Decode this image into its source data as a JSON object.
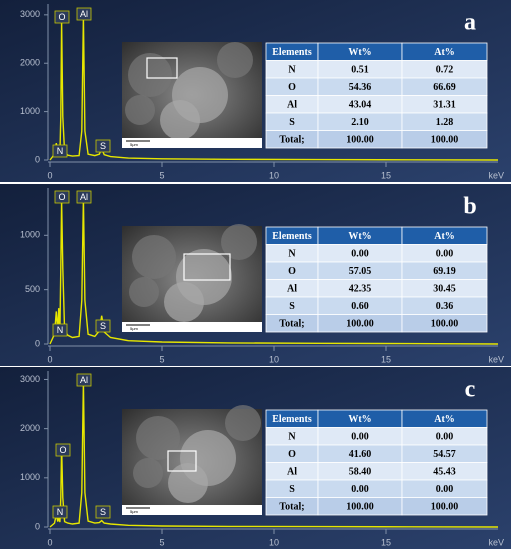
{
  "chart_data": [
    {
      "type": "line",
      "panel_label": "a",
      "x_unit": "keV",
      "color": "#e6e600",
      "x": [
        0,
        0.2,
        0.28,
        0.35,
        0.39,
        0.44,
        0.48,
        0.52,
        0.57,
        0.65,
        0.8,
        1.0,
        1.3,
        1.42,
        1.49,
        1.56,
        1.7,
        2.0,
        2.2,
        2.31,
        2.42,
        2.7,
        3.5,
        5,
        8,
        12,
        16,
        20
      ],
      "values": [
        0,
        120,
        350,
        150,
        280,
        120,
        900,
        2900,
        900,
        150,
        100,
        80,
        90,
        600,
        2950,
        600,
        120,
        90,
        120,
        230,
        110,
        70,
        40,
        25,
        15,
        8,
        5,
        0
      ],
      "xlim": [
        0,
        20
      ],
      "xticks": [
        0,
        5,
        10,
        15
      ],
      "ylim": [
        0,
        3100
      ],
      "yticks": [
        0,
        1000,
        2000,
        3000
      ],
      "annotations": [
        "O",
        "Al",
        "N",
        "S"
      ],
      "scale_bar": "5μm",
      "table": {
        "header": [
          "Elements",
          "Wt%",
          "At%"
        ],
        "rows": [
          [
            "N",
            "0.51",
            "0.72"
          ],
          [
            "O",
            "54.36",
            "66.69"
          ],
          [
            "Al",
            "43.04",
            "31.31"
          ],
          [
            "S",
            "2.10",
            "1.28"
          ],
          [
            "Total;",
            "100.00",
            "100.00"
          ]
        ]
      }
    },
    {
      "type": "line",
      "panel_label": "b",
      "x_unit": "keV",
      "color": "#e6e600",
      "x": [
        0,
        0.2,
        0.28,
        0.35,
        0.39,
        0.44,
        0.48,
        0.52,
        0.57,
        0.65,
        0.8,
        1.0,
        1.3,
        1.42,
        1.49,
        1.56,
        1.7,
        2.0,
        2.2,
        2.31,
        2.42,
        2.7,
        3.5,
        5,
        8,
        12,
        16,
        20
      ],
      "values": [
        0,
        90,
        300,
        120,
        330,
        110,
        700,
        1330,
        700,
        120,
        80,
        60,
        70,
        400,
        1340,
        400,
        90,
        70,
        120,
        260,
        110,
        60,
        30,
        18,
        10,
        6,
        4,
        0
      ],
      "xlim": [
        0,
        20
      ],
      "xticks": [
        0,
        5,
        10,
        15
      ],
      "ylim": [
        0,
        1380
      ],
      "yticks": [
        0,
        500,
        1000
      ],
      "annotations": [
        "O",
        "Al",
        "N",
        "S"
      ],
      "scale_bar": "5μm",
      "table": {
        "header": [
          "Elements",
          "Wt%",
          "At%"
        ],
        "rows": [
          [
            "N",
            "0.00",
            "0.00"
          ],
          [
            "O",
            "57.05",
            "69.19"
          ],
          [
            "Al",
            "42.35",
            "30.45"
          ],
          [
            "S",
            "0.60",
            "0.36"
          ],
          [
            "Total;",
            "100.00",
            "100.00"
          ]
        ]
      }
    },
    {
      "type": "line",
      "panel_label": "c",
      "x_unit": "keV",
      "color": "#e6e600",
      "x": [
        0,
        0.2,
        0.28,
        0.35,
        0.39,
        0.44,
        0.48,
        0.52,
        0.57,
        0.65,
        0.8,
        1.0,
        1.3,
        1.42,
        1.49,
        1.56,
        1.7,
        2.0,
        2.2,
        2.31,
        2.42,
        2.7,
        3.5,
        5,
        8,
        12,
        16,
        20
      ],
      "values": [
        0,
        80,
        250,
        110,
        200,
        100,
        600,
        1650,
        600,
        110,
        80,
        60,
        80,
        700,
        2950,
        700,
        120,
        80,
        90,
        130,
        80,
        60,
        35,
        20,
        12,
        8,
        5,
        0
      ],
      "xlim": [
        0,
        20
      ],
      "xticks": [
        0,
        5,
        10,
        15
      ],
      "ylim": [
        0,
        3050
      ],
      "yticks": [
        0,
        1000,
        2000,
        3000
      ],
      "annotations": [
        "Al",
        "O",
        "N",
        "S"
      ],
      "scale_bar": "5μm",
      "table": {
        "header": [
          "Elements",
          "Wt%",
          "At%"
        ],
        "rows": [
          [
            "N",
            "0.00",
            "0.00"
          ],
          [
            "O",
            "41.60",
            "54.57"
          ],
          [
            "Al",
            "58.40",
            "45.43"
          ],
          [
            "S",
            "0.00",
            "0.00"
          ],
          [
            "Total;",
            "100.00",
            "100.00"
          ]
        ]
      }
    }
  ]
}
